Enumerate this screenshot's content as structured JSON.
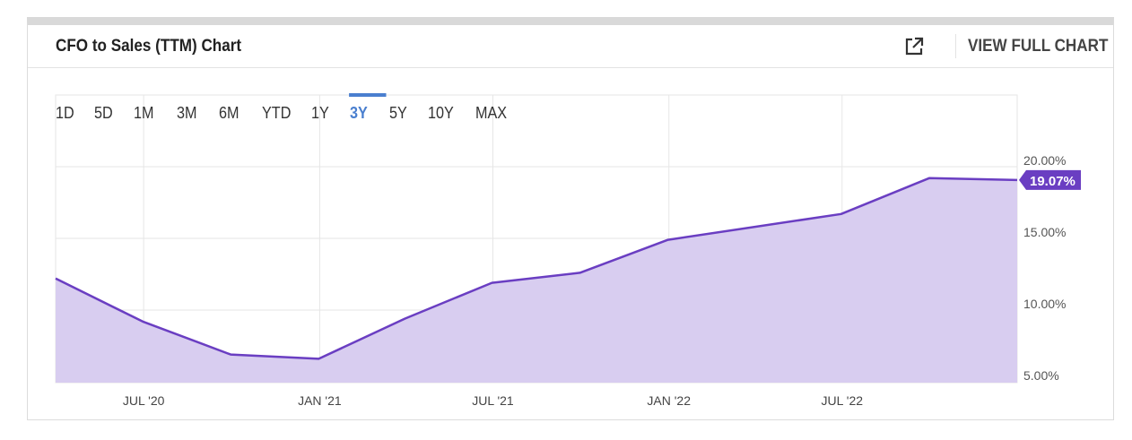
{
  "header": {
    "title": "CFO to Sales (TTM) Chart",
    "full_chart_label": "VIEW FULL CHART"
  },
  "ranges": {
    "items": [
      "1D",
      "5D",
      "1M",
      "3M",
      "6M",
      "YTD",
      "1Y",
      "3Y",
      "5Y",
      "10Y",
      "MAX"
    ],
    "active": "3Y"
  },
  "colors": {
    "line": "#6a3ec2",
    "fill": "#d8cdf0",
    "active_range": "#4a7fcf",
    "grid": "#e6e6e6"
  },
  "chart_data": {
    "type": "area",
    "title": "CFO to Sales (TTM) Chart",
    "x": [
      "2020-03-31",
      "2020-06-30",
      "2020-09-30",
      "2020-12-31",
      "2021-03-31",
      "2021-06-30",
      "2021-09-30",
      "2021-12-31",
      "2022-06-30",
      "2022-09-30",
      "2022-12-31"
    ],
    "y": [
      12.2,
      9.2,
      6.9,
      6.6,
      9.4,
      11.9,
      12.6,
      14.9,
      16.7,
      19.2,
      19.07
    ],
    "x_ticks": [
      "JUL '20",
      "JAN '21",
      "JUL '21",
      "JAN '22",
      "JUL '22"
    ],
    "x_tick_dates": [
      "2020-07-01",
      "2021-01-01",
      "2021-07-01",
      "2022-01-01",
      "2022-07-01"
    ],
    "y_ticks": [
      "5.00%",
      "10.00%",
      "15.00%",
      "20.00%"
    ],
    "y_tick_values": [
      5,
      10,
      15,
      20
    ],
    "xlim": [
      "2020-03-31",
      "2022-12-31"
    ],
    "ylim": [
      5,
      20
    ],
    "last_value_label": "19.07%",
    "grid": true,
    "legend": "none"
  }
}
